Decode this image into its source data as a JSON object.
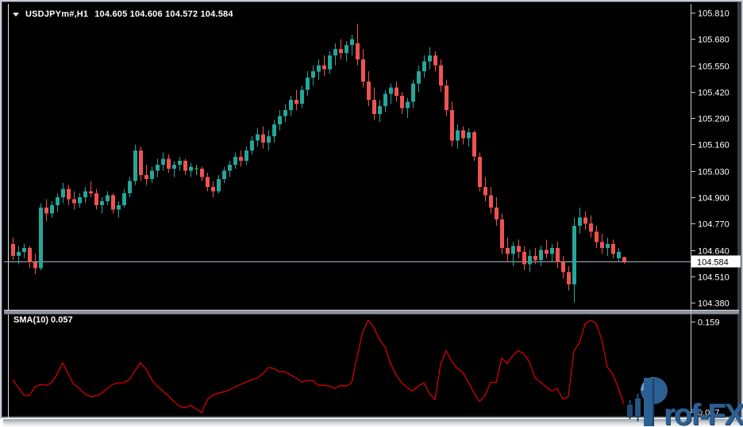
{
  "window": {
    "symbol_line": {
      "symbol_period": "USDJPYm#,H1",
      "ohlc": "104.605 104.606 104.572 104.584"
    },
    "indicator_label": "SMA(10) 0.057",
    "watermark": {
      "brand": "Prof-FX",
      "text_after_logo": "rof-FX"
    }
  },
  "colors": {
    "bull": "#26a69a",
    "bear": "#ef5350",
    "doji": "#32cd32",
    "sma": "#e60000",
    "price_line": "#a9b3c6",
    "axis_line": "#c6cad0",
    "axis_text": "#ffffff",
    "price_box_bg": "#ffffff",
    "price_box_text": "#000000",
    "watermark_blue": "#2b6094"
  },
  "chart_data": {
    "type": "candlestick",
    "symbol": "USDJPYm#",
    "timeframe": "H1",
    "title": "USDJPYm#,H1  104.605 104.606 104.572 104.584",
    "last_ohlc": {
      "open": "104.605",
      "high": "104.606",
      "low": "104.572",
      "close": "104.584"
    },
    "price_axis": {
      "labels": [
        "105.810",
        "105.680",
        "105.550",
        "105.420",
        "105.290",
        "105.160",
        "105.030",
        "104.900",
        "104.770",
        "104.640",
        "104.510",
        "104.380"
      ],
      "current": "104.584",
      "range": [
        104.38,
        105.81
      ]
    },
    "doji_indices": [
      33
    ],
    "candles": [
      [
        104.67,
        104.7,
        104.59,
        104.61
      ],
      [
        104.61,
        104.66,
        104.57,
        104.63
      ],
      [
        104.63,
        104.67,
        104.6,
        104.65
      ],
      [
        104.65,
        104.66,
        104.55,
        104.58
      ],
      [
        104.58,
        104.62,
        104.52,
        104.55
      ],
      [
        104.55,
        104.87,
        104.54,
        104.85
      ],
      [
        104.85,
        104.89,
        104.78,
        104.82
      ],
      [
        104.82,
        104.88,
        104.8,
        104.86
      ],
      [
        104.86,
        104.92,
        104.83,
        104.9
      ],
      [
        104.9,
        104.97,
        104.87,
        104.94
      ],
      [
        104.94,
        104.96,
        104.86,
        104.89
      ],
      [
        104.89,
        104.93,
        104.84,
        104.87
      ],
      [
        104.87,
        104.92,
        104.85,
        104.9
      ],
      [
        104.9,
        104.95,
        104.87,
        104.93
      ],
      [
        104.93,
        104.98,
        104.9,
        104.92
      ],
      [
        104.92,
        104.94,
        104.84,
        104.86
      ],
      [
        104.86,
        104.9,
        104.82,
        104.88
      ],
      [
        104.88,
        104.93,
        104.86,
        104.91
      ],
      [
        104.91,
        104.92,
        104.82,
        104.84
      ],
      [
        104.84,
        104.88,
        104.8,
        104.86
      ],
      [
        104.86,
        104.94,
        104.85,
        104.92
      ],
      [
        104.92,
        105.0,
        104.9,
        104.98
      ],
      [
        104.98,
        105.16,
        104.96,
        105.13
      ],
      [
        105.13,
        105.15,
        104.98,
        105.01
      ],
      [
        105.01,
        105.06,
        104.96,
        104.99
      ],
      [
        104.99,
        105.05,
        104.97,
        105.03
      ],
      [
        105.03,
        105.09,
        105.0,
        105.06
      ],
      [
        105.06,
        105.12,
        105.03,
        105.09
      ],
      [
        105.09,
        105.11,
        105.02,
        105.04
      ],
      [
        105.04,
        105.08,
        105.0,
        105.06
      ],
      [
        105.06,
        105.1,
        105.03,
        105.08
      ],
      [
        105.08,
        105.09,
        105.01,
        105.03
      ],
      [
        105.03,
        105.07,
        105.0,
        105.05
      ],
      [
        105.04,
        105.06,
        105.01,
        105.04
      ],
      [
        105.04,
        105.05,
        104.98,
        105.0
      ],
      [
        105.0,
        105.02,
        104.93,
        104.95
      ],
      [
        104.95,
        104.98,
        104.9,
        104.93
      ],
      [
        104.93,
        105.01,
        104.92,
        104.99
      ],
      [
        104.99,
        105.05,
        104.97,
        105.03
      ],
      [
        105.03,
        105.08,
        105.0,
        105.06
      ],
      [
        105.06,
        105.12,
        105.04,
        105.1
      ],
      [
        105.1,
        105.13,
        105.05,
        105.08
      ],
      [
        105.08,
        105.15,
        105.06,
        105.13
      ],
      [
        105.13,
        105.2,
        105.11,
        105.18
      ],
      [
        105.18,
        105.24,
        105.15,
        105.21
      ],
      [
        105.21,
        105.25,
        105.14,
        105.17
      ],
      [
        105.17,
        105.23,
        105.13,
        105.2
      ],
      [
        105.2,
        105.28,
        105.17,
        105.26
      ],
      [
        105.26,
        105.33,
        105.23,
        105.3
      ],
      [
        105.3,
        105.36,
        105.27,
        105.33
      ],
      [
        105.33,
        105.4,
        105.3,
        105.38
      ],
      [
        105.38,
        105.43,
        105.33,
        105.36
      ],
      [
        105.36,
        105.45,
        105.34,
        105.43
      ],
      [
        105.43,
        105.52,
        105.4,
        105.49
      ],
      [
        105.49,
        105.55,
        105.45,
        105.52
      ],
      [
        105.52,
        105.58,
        105.48,
        105.55
      ],
      [
        105.55,
        105.6,
        105.5,
        105.53
      ],
      [
        105.53,
        105.62,
        105.51,
        105.6
      ],
      [
        105.6,
        105.66,
        105.55,
        105.63
      ],
      [
        105.63,
        105.68,
        105.58,
        105.61
      ],
      [
        105.61,
        105.67,
        105.57,
        105.65
      ],
      [
        105.65,
        105.7,
        105.6,
        105.68
      ],
      [
        105.66,
        105.755,
        105.55,
        105.58
      ],
      [
        105.58,
        105.63,
        105.44,
        105.47
      ],
      [
        105.47,
        105.52,
        105.35,
        105.38
      ],
      [
        105.38,
        105.44,
        105.28,
        105.31
      ],
      [
        105.31,
        105.38,
        105.27,
        105.35
      ],
      [
        105.35,
        105.43,
        105.32,
        105.41
      ],
      [
        105.41,
        105.46,
        105.36,
        105.44
      ],
      [
        105.44,
        105.47,
        105.37,
        105.4
      ],
      [
        105.4,
        105.42,
        105.31,
        105.34
      ],
      [
        105.34,
        105.39,
        105.29,
        105.37
      ],
      [
        105.37,
        105.48,
        105.34,
        105.46
      ],
      [
        105.46,
        105.55,
        105.42,
        105.52
      ],
      [
        105.52,
        105.6,
        105.49,
        105.57
      ],
      [
        105.57,
        105.64,
        105.53,
        105.6
      ],
      [
        105.6,
        105.62,
        105.52,
        105.55
      ],
      [
        105.55,
        105.58,
        105.42,
        105.45
      ],
      [
        105.45,
        105.48,
        105.3,
        105.33
      ],
      [
        105.33,
        105.37,
        105.15,
        105.18
      ],
      [
        105.18,
        105.26,
        105.14,
        105.23
      ],
      [
        105.23,
        105.25,
        105.16,
        105.19
      ],
      [
        105.19,
        105.24,
        105.15,
        105.22
      ],
      [
        105.22,
        105.23,
        105.08,
        105.1
      ],
      [
        105.1,
        105.12,
        104.93,
        104.95
      ],
      [
        104.95,
        105.0,
        104.88,
        104.91
      ],
      [
        104.91,
        104.95,
        104.82,
        104.85
      ],
      [
        104.85,
        104.9,
        104.76,
        104.79
      ],
      [
        104.79,
        104.82,
        104.62,
        104.65
      ],
      [
        104.65,
        104.7,
        104.58,
        104.62
      ],
      [
        104.62,
        104.68,
        104.56,
        104.66
      ],
      [
        104.66,
        104.69,
        104.6,
        104.63
      ],
      [
        104.63,
        104.66,
        104.54,
        104.57
      ],
      [
        104.57,
        104.64,
        104.53,
        104.61
      ],
      [
        104.61,
        104.65,
        104.57,
        104.59
      ],
      [
        104.59,
        104.66,
        104.56,
        104.64
      ],
      [
        104.64,
        104.69,
        104.6,
        104.62
      ],
      [
        104.62,
        104.67,
        104.58,
        104.65
      ],
      [
        104.65,
        104.68,
        104.55,
        104.58
      ],
      [
        104.58,
        104.61,
        104.5,
        104.53
      ],
      [
        104.53,
        104.56,
        104.44,
        104.47
      ],
      [
        104.47,
        104.8,
        104.38,
        104.76
      ],
      [
        104.76,
        104.85,
        104.72,
        104.8
      ],
      [
        104.8,
        104.83,
        104.74,
        104.77
      ],
      [
        104.77,
        104.81,
        104.7,
        104.73
      ],
      [
        104.73,
        104.76,
        104.65,
        104.68
      ],
      [
        104.68,
        104.72,
        104.62,
        104.65
      ],
      [
        104.65,
        104.7,
        104.61,
        104.67
      ],
      [
        104.67,
        104.69,
        104.6,
        104.62
      ],
      [
        104.6,
        104.65,
        104.58,
        104.63
      ],
      [
        104.605,
        104.606,
        104.572,
        104.584
      ]
    ],
    "indicator": {
      "name": "SMA(10)",
      "current": "0.057",
      "axis_max": "0.159",
      "axis_min": "0.047",
      "values": [
        0.087,
        0.077,
        0.068,
        0.067,
        0.078,
        0.081,
        0.08,
        0.083,
        0.094,
        0.108,
        0.094,
        0.081,
        0.076,
        0.069,
        0.066,
        0.067,
        0.07,
        0.076,
        0.081,
        0.083,
        0.083,
        0.087,
        0.098,
        0.108,
        0.1,
        0.087,
        0.079,
        0.073,
        0.067,
        0.06,
        0.054,
        0.052,
        0.055,
        0.051,
        0.046,
        0.062,
        0.068,
        0.07,
        0.072,
        0.074,
        0.078,
        0.081,
        0.084,
        0.087,
        0.089,
        0.094,
        0.102,
        0.101,
        0.097,
        0.097,
        0.093,
        0.089,
        0.084,
        0.086,
        0.086,
        0.08,
        0.08,
        0.079,
        0.076,
        0.08,
        0.079,
        0.083,
        0.116,
        0.147,
        0.161,
        0.152,
        0.137,
        0.128,
        0.107,
        0.093,
        0.083,
        0.077,
        0.073,
        0.079,
        0.083,
        0.07,
        0.062,
        0.106,
        0.123,
        0.11,
        0.101,
        0.096,
        0.084,
        0.071,
        0.06,
        0.067,
        0.084,
        0.083,
        0.114,
        0.107,
        0.117,
        0.123,
        0.119,
        0.109,
        0.089,
        0.084,
        0.078,
        0.073,
        0.076,
        0.063,
        0.066,
        0.123,
        0.133,
        0.156,
        0.161,
        0.157,
        0.137,
        0.103,
        0.094,
        0.076,
        0.057
      ]
    }
  }
}
